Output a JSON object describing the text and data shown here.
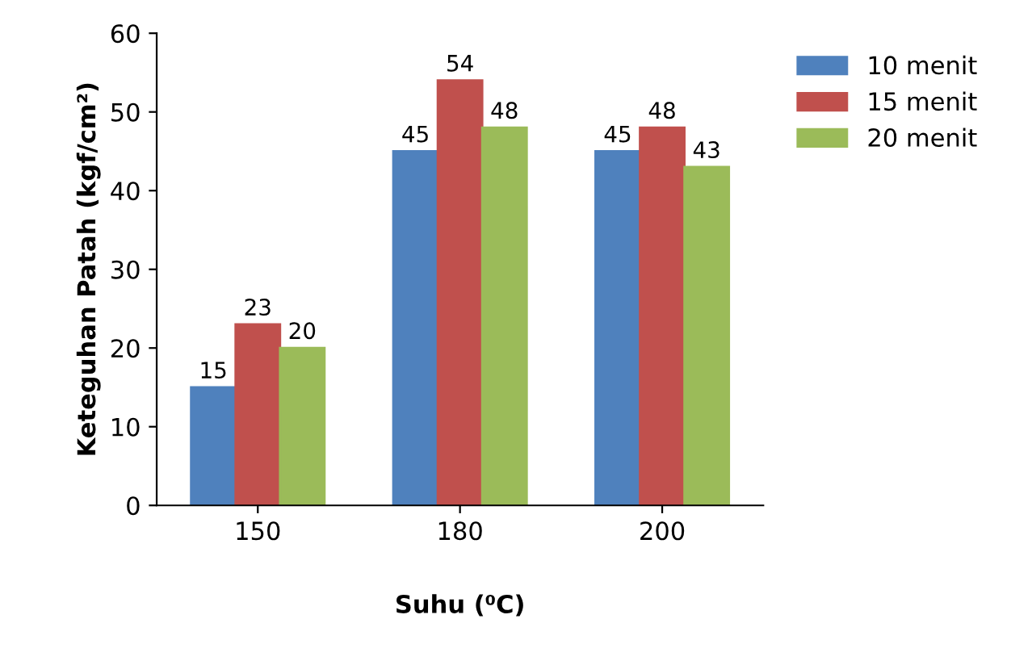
{
  "chart_data": {
    "type": "bar",
    "xlabel": "Suhu (⁰C)",
    "ylabel": "Keteguhan Patah (kgf/cm²)",
    "categories": [
      "150",
      "180",
      "200"
    ],
    "series": [
      {
        "name": "10 menit",
        "color": "#4f81bd",
        "values": [
          15,
          45,
          45
        ]
      },
      {
        "name": "15 menit",
        "color": "#c0504d",
        "values": [
          23,
          54,
          48
        ]
      },
      {
        "name": "20 menit",
        "color": "#9bbb59",
        "values": [
          20,
          48,
          43
        ]
      }
    ],
    "ylim": [
      0,
      60
    ],
    "yticks": [
      0,
      10,
      20,
      30,
      40,
      50,
      60
    ],
    "data_labels": true,
    "grid": false,
    "legend": "top right"
  }
}
